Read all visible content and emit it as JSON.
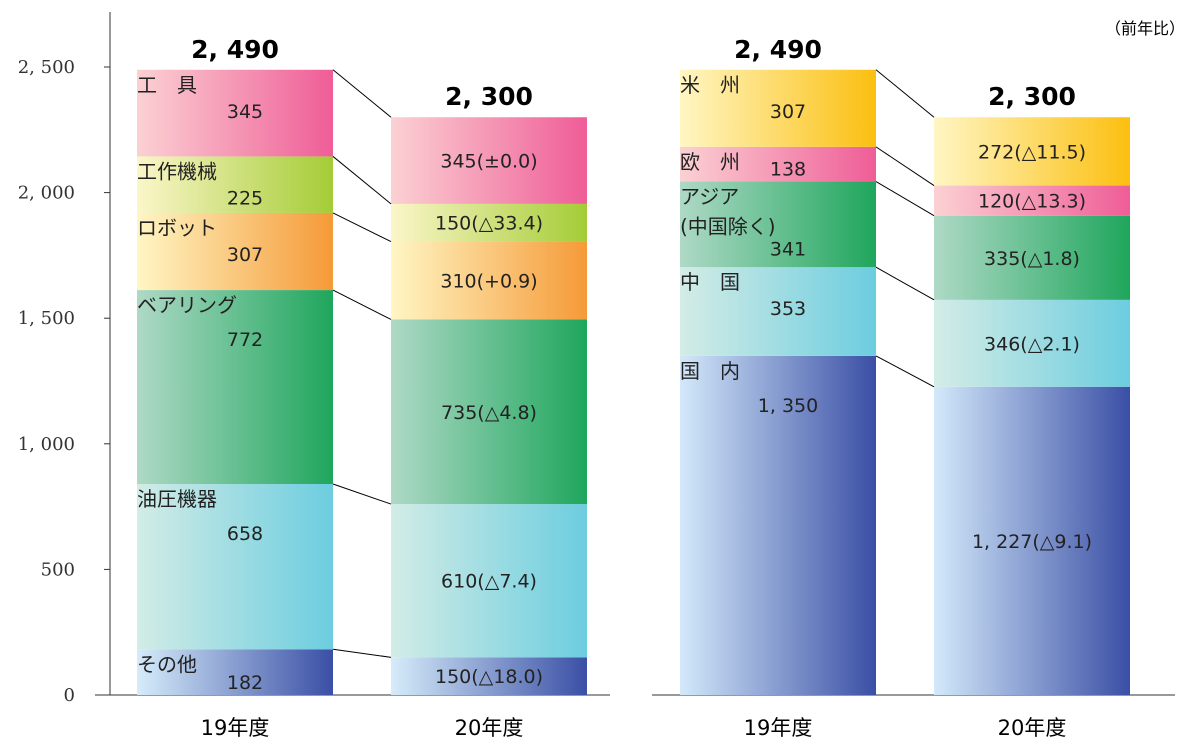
{
  "chart_data": [
    {
      "type": "bar",
      "stacked": true,
      "categories": [
        "19年度",
        "20年度"
      ],
      "ylim": [
        0,
        2500
      ],
      "yticks": [
        "0",
        "500",
        "1, 000",
        "1, 500",
        "2, 000",
        "2, 500"
      ],
      "totals": [
        "2, 490",
        "2, 300"
      ],
      "series": [
        {
          "name": "その他",
          "values": [
            182,
            150
          ],
          "labels": [
            "182",
            "150(△18.0)"
          ],
          "colors": [
            "#d6ecfa",
            "#3a4fa5"
          ]
        },
        {
          "name": "油圧機器",
          "values": [
            658,
            610
          ],
          "labels": [
            "658",
            "610(△7.4)"
          ],
          "colors": [
            "#d2ece6",
            "#6ccddf"
          ]
        },
        {
          "name": "ベアリング",
          "values": [
            772,
            735
          ],
          "labels": [
            "772",
            "735(△4.8)"
          ],
          "colors": [
            "#aed9c6",
            "#1fa65c"
          ]
        },
        {
          "name": "ロボット",
          "values": [
            307,
            310
          ],
          "labels": [
            "307",
            "310(+0.9)"
          ],
          "colors": [
            "#fff6c4",
            "#f59a38"
          ]
        },
        {
          "name": "工作機械",
          "values": [
            225,
            150
          ],
          "labels": [
            "225",
            "150(△33.4)"
          ],
          "colors": [
            "#fbf6c9",
            "#a4cc36"
          ]
        },
        {
          "name": "工　具",
          "values": [
            345,
            345
          ],
          "labels": [
            "345",
            "345(±0.0)"
          ],
          "colors": [
            "#fbd1d3",
            "#ef5d97"
          ]
        }
      ]
    },
    {
      "type": "bar",
      "stacked": true,
      "categories": [
        "19年度",
        "20年度"
      ],
      "ylim": [
        0,
        2500
      ],
      "totals": [
        "2, 490",
        "2, 300"
      ],
      "series": [
        {
          "name": "国　内",
          "values": [
            1350,
            1227
          ],
          "labels": [
            "1, 350",
            "1, 227(△9.1)"
          ],
          "colors": [
            "#d3e9fa",
            "#3a4fa5"
          ]
        },
        {
          "name": "中　国",
          "values": [
            353,
            346
          ],
          "labels": [
            "353",
            "346(△2.1)"
          ],
          "colors": [
            "#d4ece6",
            "#6ccddf"
          ]
        },
        {
          "name": "アジア\n(中国除く)",
          "values": [
            341,
            335
          ],
          "labels": [
            "341",
            "335(△1.8)"
          ],
          "colors": [
            "#aed9c6",
            "#1fa65c"
          ]
        },
        {
          "name": "欧　州",
          "values": [
            138,
            120
          ],
          "labels": [
            "138",
            "120(△13.3)"
          ],
          "colors": [
            "#fbd1d3",
            "#ef5d97"
          ]
        },
        {
          "name": "米　州",
          "values": [
            307,
            272
          ],
          "labels": [
            "307",
            "272(△11.5)"
          ],
          "colors": [
            "#fff6c4",
            "#fbbf10"
          ]
        }
      ]
    }
  ],
  "note": "（前年比）"
}
